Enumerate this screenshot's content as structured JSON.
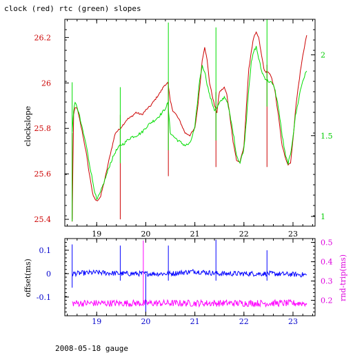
{
  "footer_text": "2008-05-18 gauge",
  "chart_data": [
    {
      "type": "line",
      "title": "clock (red) rtc (green) slopes",
      "ylabel": "clockslope",
      "x_ticks": [
        19,
        20,
        21,
        22,
        23
      ],
      "xlim": [
        18.35,
        23.45
      ],
      "ylim": [
        25.37,
        26.28
      ],
      "y_ticks": [
        "25.4",
        "25.6",
        "25.8",
        "26",
        "26.2"
      ],
      "y2lim": [
        0.94,
        2.22
      ],
      "y2_ticks": [
        "1",
        "1.5",
        "2"
      ],
      "colors": {
        "axis": "#000000",
        "left_axis_text": "#cc0000",
        "right_axis_text": "#00cc00",
        "x_tick_text": "#000000"
      },
      "series": [
        {
          "color": "#cc0000",
          "axis": "left",
          "x": [
            18.5,
            18.53,
            18.56,
            18.6,
            18.65,
            18.7,
            18.78,
            18.85,
            18.93,
            19.0,
            19.08,
            19.18,
            19.28,
            19.38,
            19.48,
            19.55,
            19.62,
            19.7,
            19.8,
            19.92,
            20.0,
            20.1,
            20.2,
            20.3,
            20.38,
            20.45,
            20.5,
            20.55,
            20.62,
            20.7,
            20.8,
            20.9,
            21.0,
            21.05,
            21.1,
            21.15,
            21.2,
            21.25,
            21.3,
            21.4,
            21.45,
            21.5,
            21.55,
            21.6,
            21.65,
            21.7,
            21.78,
            21.85,
            21.92,
            22.0,
            22.05,
            22.1,
            22.15,
            22.2,
            22.25,
            22.3,
            22.36,
            22.42,
            22.48,
            22.55,
            22.62,
            22.7,
            22.78,
            22.85,
            22.9,
            22.95,
            23.0,
            23.05,
            23.1,
            23.15,
            23.2,
            23.25,
            23.28
          ],
          "y": [
            25.4,
            25.86,
            25.89,
            25.89,
            25.84,
            25.79,
            25.7,
            25.6,
            25.5,
            25.48,
            25.5,
            25.59,
            25.69,
            25.78,
            25.8,
            25.82,
            25.84,
            25.85,
            25.87,
            25.86,
            25.88,
            25.9,
            25.93,
            25.96,
            25.99,
            26.0,
            25.92,
            25.88,
            25.86,
            25.83,
            25.78,
            25.77,
            25.8,
            25.88,
            25.98,
            26.1,
            26.16,
            26.1,
            26.0,
            25.9,
            25.87,
            25.96,
            25.97,
            25.98,
            25.95,
            25.88,
            25.74,
            25.66,
            25.65,
            25.72,
            25.9,
            26.06,
            26.14,
            26.2,
            26.22,
            26.2,
            26.12,
            26.05,
            26.05,
            26.03,
            25.98,
            25.86,
            25.72,
            25.67,
            25.64,
            25.65,
            25.75,
            25.88,
            25.97,
            26.05,
            26.12,
            26.18,
            26.21
          ]
        },
        {
          "color": "#00dd00",
          "axis": "right",
          "x": [
            18.5,
            18.53,
            18.56,
            18.6,
            18.65,
            18.7,
            18.78,
            18.85,
            18.93,
            19.0,
            19.08,
            19.18,
            19.28,
            19.38,
            19.48,
            19.55,
            19.62,
            19.7,
            19.8,
            19.92,
            20.0,
            20.1,
            20.2,
            20.3,
            20.38,
            20.45,
            20.5,
            20.55,
            20.62,
            20.7,
            20.8,
            20.9,
            21.0,
            21.05,
            21.1,
            21.15,
            21.2,
            21.25,
            21.3,
            21.4,
            21.45,
            21.5,
            21.55,
            21.6,
            21.65,
            21.7,
            21.78,
            21.85,
            21.92,
            22.0,
            22.05,
            22.1,
            22.15,
            22.2,
            22.25,
            22.3,
            22.36,
            22.42,
            22.48,
            22.55,
            22.62,
            22.7,
            22.78,
            22.85,
            22.9,
            22.95,
            23.0,
            23.05,
            23.1,
            23.15,
            23.2,
            23.25,
            23.28
          ],
          "y": [
            1.52,
            1.66,
            1.7,
            1.68,
            1.62,
            1.55,
            1.45,
            1.33,
            1.2,
            1.1,
            1.15,
            1.24,
            1.33,
            1.4,
            1.44,
            1.45,
            1.47,
            1.49,
            1.5,
            1.52,
            1.55,
            1.58,
            1.6,
            1.63,
            1.66,
            1.7,
            1.52,
            1.5,
            1.48,
            1.46,
            1.44,
            1.45,
            1.55,
            1.7,
            1.85,
            1.93,
            1.9,
            1.82,
            1.75,
            1.66,
            1.67,
            1.7,
            1.72,
            1.74,
            1.72,
            1.65,
            1.52,
            1.38,
            1.33,
            1.42,
            1.6,
            1.8,
            1.95,
            2.02,
            2.05,
            1.98,
            1.9,
            1.86,
            1.84,
            1.83,
            1.8,
            1.68,
            1.5,
            1.37,
            1.33,
            1.38,
            1.5,
            1.62,
            1.7,
            1.78,
            1.84,
            1.88,
            1.9
          ]
        }
      ],
      "spikes": [
        {
          "x": 18.5,
          "color": "#cc0000",
          "axis": "left",
          "from": 25.39,
          "to": 25.78
        },
        {
          "x": 19.48,
          "color": "#cc0000",
          "axis": "left",
          "from": 25.4,
          "to": 25.86
        },
        {
          "x": 20.46,
          "color": "#cc0000",
          "axis": "left",
          "from": 25.59,
          "to": 26.0
        },
        {
          "x": 21.43,
          "color": "#cc0000",
          "axis": "left",
          "from": 25.63,
          "to": 25.96
        },
        {
          "x": 22.47,
          "color": "#cc0000",
          "axis": "left",
          "from": 25.63,
          "to": 26.08
        },
        {
          "x": 18.5,
          "color": "#00dd00",
          "axis": "right",
          "from": 0.97,
          "to": 1.83
        },
        {
          "x": 19.48,
          "color": "#00dd00",
          "axis": "right",
          "from": 1.33,
          "to": 1.8
        },
        {
          "x": 20.46,
          "color": "#00dd00",
          "axis": "right",
          "from": 1.41,
          "to": 2.2
        },
        {
          "x": 21.43,
          "color": "#00dd00",
          "axis": "right",
          "from": 1.47,
          "to": 2.17
        },
        {
          "x": 22.47,
          "color": "#00dd00",
          "axis": "right",
          "from": 1.68,
          "to": 2.22
        }
      ]
    },
    {
      "type": "line",
      "ylabel": "offset(ms)",
      "y2label": "rnd-trip(ms)",
      "x_ticks": [
        19,
        20,
        21,
        22,
        23
      ],
      "xlim": [
        18.35,
        23.45
      ],
      "ylim": [
        -0.18,
        0.15
      ],
      "y_ticks": [
        "-0.1",
        "0",
        "0.1"
      ],
      "y2lim": [
        0.12,
        0.52
      ],
      "y2_ticks": [
        "0.2",
        "0.3",
        "0.4",
        "0.5"
      ],
      "colors": {
        "axis": "#000000",
        "left_axis_text": "#0000cc",
        "right_axis_text": "#dd00dd",
        "x_tick_text": "#0000cc"
      },
      "series": [
        {
          "color": "#0000ff",
          "axis": "left",
          "baseline": [
            [
              18.5,
              0.0
            ],
            [
              19.0,
              0.005
            ],
            [
              19.5,
              0.0
            ],
            [
              20.0,
              0.0
            ],
            [
              20.5,
              0.0
            ],
            [
              21.0,
              0.01
            ],
            [
              21.5,
              0.0
            ],
            [
              22.0,
              0.0
            ],
            [
              22.5,
              0.0
            ],
            [
              23.28,
              -0.005
            ]
          ]
        },
        {
          "color": "#ff00ff",
          "axis": "right",
          "baseline": [
            [
              18.5,
              0.185
            ],
            [
              19.0,
              0.185
            ],
            [
              20.0,
              0.185
            ],
            [
              21.0,
              0.185
            ],
            [
              22.0,
              0.185
            ],
            [
              23.28,
              0.185
            ]
          ]
        }
      ],
      "spikes": [
        {
          "x": 18.5,
          "color": "#0000ff",
          "axis": "left",
          "from": -0.06,
          "to": 0.125
        },
        {
          "x": 19.48,
          "color": "#0000ff",
          "axis": "left",
          "from": -0.03,
          "to": 0.12
        },
        {
          "x": 20.46,
          "color": "#0000ff",
          "axis": "left",
          "from": -0.03,
          "to": 0.12
        },
        {
          "x": 21.43,
          "color": "#0000ff",
          "axis": "left",
          "from": -0.03,
          "to": 0.145
        },
        {
          "x": 22.47,
          "color": "#0000ff",
          "axis": "left",
          "from": -0.03,
          "to": 0.1
        },
        {
          "x": 19.95,
          "color": "#ff00ff",
          "axis": "right",
          "from": 0.17,
          "to": 0.51
        },
        {
          "x": 20.0,
          "color": "#0000ff",
          "axis": "left",
          "from": -0.17,
          "to": 0.0
        }
      ]
    }
  ]
}
